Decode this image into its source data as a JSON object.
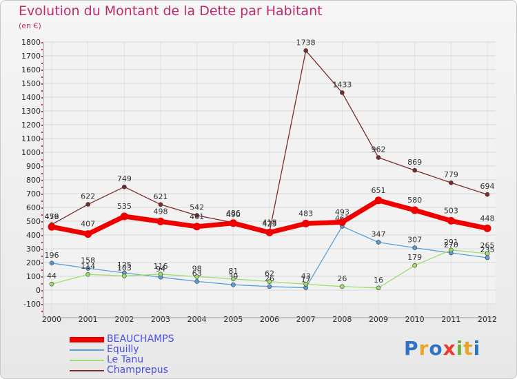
{
  "title": "Evolution du Montant de la Dette par Habitant",
  "subtitle": "(en €)",
  "logo": {
    "letters": [
      "P",
      "r",
      "o",
      "x",
      "i",
      "t",
      "i"
    ],
    "colors": [
      "#2f74c4",
      "#e8a52b",
      "#2f74c4",
      "#e83c2f",
      "#6cb33f",
      "#e8a52b",
      "#2f74c4"
    ]
  },
  "chart_data": {
    "type": "line",
    "x": [
      "2000",
      "2001",
      "2002",
      "2003",
      "2004",
      "2005",
      "2006",
      "2007",
      "2008",
      "2009",
      "2010",
      "2011",
      "2012"
    ],
    "ylim": [
      -100,
      1800
    ],
    "yticks": [
      "-100",
      "0",
      "100",
      "200",
      "300",
      "400",
      "500",
      "600",
      "700",
      "800",
      "900",
      "1000",
      "1100",
      "1200",
      "1300",
      "1400",
      "1500",
      "1600",
      "1700",
      "1800"
    ],
    "grid": true,
    "legend_position": "bottom-left",
    "series": [
      {
        "name": "BEAUCHAMPS",
        "color": "#ee0000",
        "values": [
          459,
          407,
          535,
          498,
          461,
          486,
          418,
          483,
          493,
          651,
          580,
          503,
          448
        ],
        "labels": [
          "459",
          "407",
          "535",
          "498",
          "461",
          "486",
          "418",
          "483",
          "493",
          "651",
          "580",
          "503",
          "448"
        ]
      },
      {
        "name": "Equilly",
        "color": "#5b9fd6",
        "values": [
          196,
          158,
          125,
          94,
          63,
          39,
          26,
          17,
          463,
          347,
          307,
          270,
          235
        ],
        "labels": [
          "196",
          "158",
          "125",
          "94",
          "63",
          "39",
          "26",
          "17",
          "463",
          "347",
          "307",
          "270",
          "235"
        ]
      },
      {
        "name": "Le Tanu",
        "color": "#9ede6e",
        "values": [
          44,
          114,
          103,
          116,
          98,
          81,
          62,
          43,
          26,
          16,
          179,
          291,
          265
        ],
        "labels": [
          "44",
          "114",
          "103",
          "116",
          "98",
          "81",
          "62",
          "43",
          "26",
          "16",
          "179",
          "291",
          "265"
        ]
      },
      {
        "name": "Champrepus",
        "color": "#7a2b2b",
        "values": [
          476,
          622,
          749,
          621,
          542,
          490,
          423,
          1738,
          1433,
          962,
          869,
          779,
          694
        ],
        "labels": [
          "476",
          "622",
          "749",
          "621",
          "542",
          "490",
          "423",
          "1738",
          "1433",
          "962",
          "869",
          "779",
          "694"
        ]
      }
    ]
  }
}
